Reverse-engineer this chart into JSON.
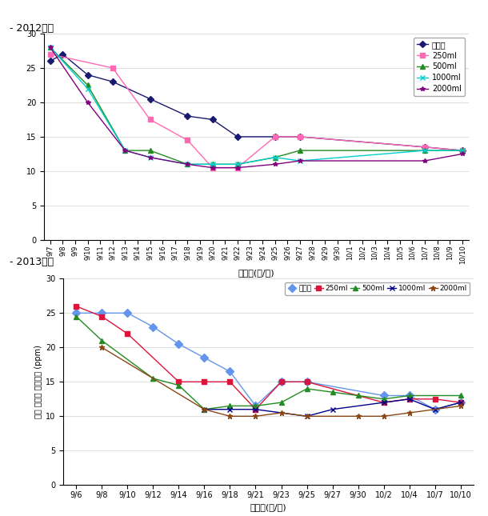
{
  "title2012": "- 2012년도",
  "title2013": "- 2013년도",
  "xlabel": "조사일(월/일)",
  "ylabel": "토양 질산태 질소논도 (ppm)",
  "ylim": [
    0,
    30
  ],
  "yticks": [
    0,
    5,
    10,
    15,
    20,
    25,
    30
  ],
  "labels": [
    "무처리",
    "250ml",
    "500ml",
    "1000ml",
    "2000ml"
  ],
  "colors2012": [
    "#191970",
    "#FF69B4",
    "#228B22",
    "#00CED1",
    "#800080"
  ],
  "markers2012": [
    "D",
    "s",
    "^",
    "x",
    "*"
  ],
  "colors2013": [
    "#6495ED",
    "#DC143C",
    "#228B22",
    "#00008B",
    "#8B4513"
  ],
  "markers2013": [
    "D",
    "s",
    "^",
    "x",
    "*"
  ],
  "x2012_labels": [
    "9/7",
    "9/8",
    "9/9",
    "9/10",
    "9/11",
    "9/12",
    "9/13",
    "9/14",
    "9/15",
    "9/16",
    "9/17",
    "9/18",
    "9/19",
    "9/20",
    "9/21",
    "9/22",
    "9/23",
    "9/24",
    "9/25",
    "9/26",
    "9/27",
    "9/28",
    "9/29",
    "9/30",
    "10/1",
    "10/2",
    "10/3",
    "10/4",
    "10/5",
    "10/6",
    "10/7",
    "10/8",
    "10/9",
    "10/10"
  ],
  "x2013_labels": [
    "9/6",
    "9/8",
    "9/10",
    "9/12",
    "9/14",
    "9/16",
    "9/18",
    "9/21",
    "9/23",
    "9/25",
    "9/27",
    "9/30",
    "10/2",
    "10/4",
    "10/7",
    "10/10"
  ],
  "series2012": {
    "무처리": [
      [
        "9/7",
        26
      ],
      [
        "9/8",
        27
      ],
      [
        "9/10",
        24
      ],
      [
        "9/12",
        23
      ],
      [
        "9/15",
        20.5
      ],
      [
        "9/18",
        18
      ],
      [
        "9/20",
        17.5
      ],
      [
        "9/22",
        15
      ],
      [
        "9/25",
        15
      ],
      [
        "9/27",
        15
      ],
      [
        "10/7",
        13.5
      ],
      [
        "10/10",
        13
      ]
    ],
    "250ml": [
      [
        "9/7",
        27
      ],
      [
        "9/12",
        25
      ],
      [
        "9/15",
        17.5
      ],
      [
        "9/18",
        14.5
      ],
      [
        "9/20",
        10.5
      ],
      [
        "9/22",
        10.5
      ],
      [
        "9/25",
        15
      ],
      [
        "9/27",
        15
      ],
      [
        "10/7",
        13.5
      ],
      [
        "10/10",
        13
      ]
    ],
    "500ml": [
      [
        "9/7",
        28
      ],
      [
        "9/10",
        22.5
      ],
      [
        "9/13",
        13
      ],
      [
        "9/15",
        13
      ],
      [
        "9/18",
        11
      ],
      [
        "9/20",
        11
      ],
      [
        "9/22",
        11
      ],
      [
        "9/25",
        12
      ],
      [
        "9/27",
        13
      ],
      [
        "10/7",
        13
      ],
      [
        "10/10",
        13
      ]
    ],
    "1000ml": [
      [
        "9/7",
        28
      ],
      [
        "9/10",
        22
      ],
      [
        "9/13",
        13
      ],
      [
        "9/15",
        12
      ],
      [
        "9/18",
        11
      ],
      [
        "9/20",
        11
      ],
      [
        "9/22",
        11
      ],
      [
        "9/25",
        12
      ],
      [
        "9/27",
        11.5
      ],
      [
        "10/7",
        13
      ],
      [
        "10/10",
        13
      ]
    ],
    "2000ml": [
      [
        "9/7",
        28
      ],
      [
        "9/10",
        20
      ],
      [
        "9/13",
        13
      ],
      [
        "9/15",
        12
      ],
      [
        "9/18",
        11
      ],
      [
        "9/20",
        10.5
      ],
      [
        "9/22",
        10.5
      ],
      [
        "9/25",
        11
      ],
      [
        "9/27",
        11.5
      ],
      [
        "10/7",
        11.5
      ],
      [
        "10/10",
        12.5
      ]
    ]
  },
  "series2013": {
    "무처리": [
      [
        "9/6",
        25
      ],
      [
        "9/8",
        25
      ],
      [
        "9/10",
        25
      ],
      [
        "9/12",
        23
      ],
      [
        "9/14",
        20.5
      ],
      [
        "9/16",
        18.5
      ],
      [
        "9/18",
        16.5
      ],
      [
        "9/21",
        11.5
      ],
      [
        "9/23",
        15
      ],
      [
        "9/25",
        15
      ],
      [
        "10/2",
        13
      ],
      [
        "10/4",
        13
      ],
      [
        "10/7",
        11
      ],
      [
        "10/10",
        12
      ]
    ],
    "250ml": [
      [
        "9/6",
        26
      ],
      [
        "9/8",
        24.5
      ],
      [
        "9/10",
        22
      ],
      [
        "9/14",
        15
      ],
      [
        "9/16",
        15
      ],
      [
        "9/18",
        15
      ],
      [
        "9/21",
        11
      ],
      [
        "9/23",
        15
      ],
      [
        "9/25",
        15
      ],
      [
        "10/2",
        12
      ],
      [
        "10/4",
        12.5
      ],
      [
        "10/7",
        12.5
      ],
      [
        "10/10",
        12
      ]
    ],
    "500ml": [
      [
        "9/6",
        24.5
      ],
      [
        "9/8",
        21
      ],
      [
        "9/12",
        15.5
      ],
      [
        "9/14",
        14.5
      ],
      [
        "9/16",
        11
      ],
      [
        "9/18",
        11.5
      ],
      [
        "9/21",
        11.5
      ],
      [
        "9/23",
        12
      ],
      [
        "9/25",
        14
      ],
      [
        "9/27",
        13.5
      ],
      [
        "9/30",
        13
      ],
      [
        "10/2",
        12.5
      ],
      [
        "10/4",
        13
      ],
      [
        "10/10",
        13
      ]
    ],
    "1000ml": [
      [
        "9/16",
        11
      ],
      [
        "9/18",
        11
      ],
      [
        "9/21",
        11
      ],
      [
        "9/25",
        10
      ],
      [
        "9/27",
        11
      ],
      [
        "10/2",
        12
      ],
      [
        "10/4",
        12.5
      ],
      [
        "10/7",
        11
      ],
      [
        "10/10",
        12
      ]
    ],
    "2000ml": [
      [
        "9/8",
        20
      ],
      [
        "9/16",
        11
      ],
      [
        "9/18",
        10
      ],
      [
        "9/21",
        10
      ],
      [
        "9/23",
        10.5
      ],
      [
        "9/25",
        10
      ],
      [
        "9/30",
        10
      ],
      [
        "10/2",
        10
      ],
      [
        "10/4",
        10.5
      ],
      [
        "10/10",
        11.5
      ]
    ]
  }
}
